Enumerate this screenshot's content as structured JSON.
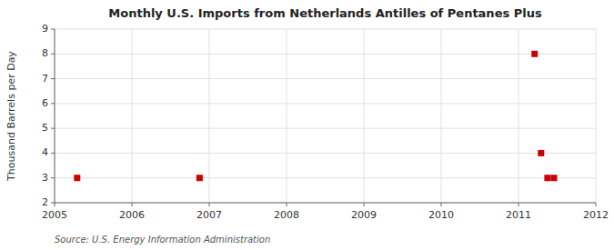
{
  "chart_data": {
    "type": "scatter",
    "title": "Monthly U.S. Imports from Netherlands Antilles of Pentanes Plus",
    "ylabel": "Thousand Barrels per Day",
    "annotations": [
      "Source: U.S. Energy Information Administration"
    ],
    "x": [
      2005.2916666666667,
      2006.875,
      2011.2083333333333,
      2011.2916666666667,
      2011.375,
      2011.4583333333333
    ],
    "values": [
      3,
      3,
      8,
      4,
      3,
      3
    ],
    "color": "#cc0000",
    "marker": "square",
    "xlim": [
      2005,
      2012
    ],
    "ylim": [
      2,
      9
    ],
    "xticks": [
      2005,
      2006,
      2007,
      2008,
      2009,
      2010,
      2011,
      2012
    ],
    "yticks": [
      2,
      3,
      4,
      5,
      6,
      7,
      8,
      9
    ],
    "grid": true
  }
}
